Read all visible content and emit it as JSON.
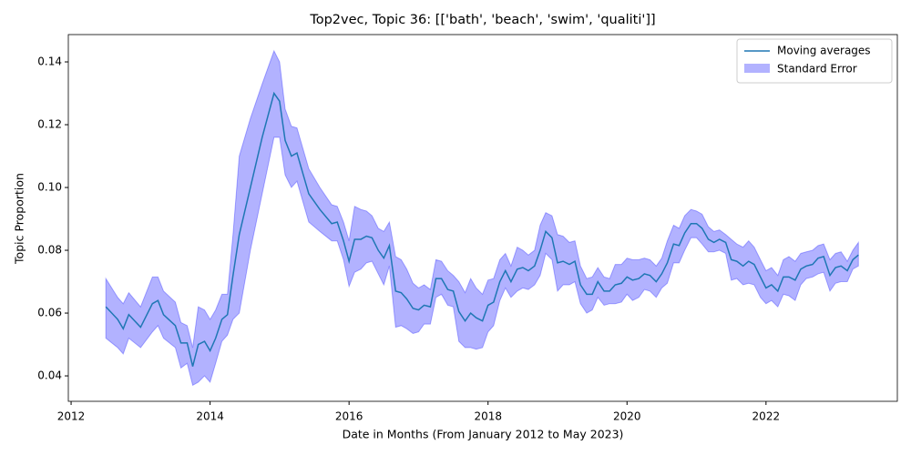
{
  "chart_data": {
    "type": "line",
    "title": "Top2vec, Topic 36: [['bath', 'beach', 'swim', 'qualiti']]",
    "xlabel": "Date in Months (From January 2012 to May 2023)",
    "ylabel": "Topic Proportion",
    "xlim": [
      2011.96,
      2023.89
    ],
    "ylim": [
      0.0319,
      0.1487
    ],
    "xticks": [
      2012,
      2014,
      2016,
      2018,
      2020,
      2022
    ],
    "yticks": [
      0.04,
      0.06,
      0.08,
      {
        "value": 0.1,
        "label": "0.10"
      },
      0.12,
      0.14
    ],
    "legend": "upper right",
    "x": [
      2012.5,
      2012.67,
      2012.75,
      2012.83,
      2013.0,
      2013.17,
      2013.25,
      2013.33,
      2013.5,
      2013.58,
      2013.67,
      2013.75,
      2013.83,
      2013.92,
      2014.0,
      2014.08,
      2014.17,
      2014.25,
      2014.33,
      2014.42,
      2014.58,
      2014.75,
      2014.92,
      2015.0,
      2015.08,
      2015.17,
      2015.25,
      2015.42,
      2015.58,
      2015.75,
      2015.83,
      2015.92,
      2016.0,
      2016.08,
      2016.17,
      2016.25,
      2016.33,
      2016.42,
      2016.5,
      2016.58,
      2016.67,
      2016.75,
      2016.83,
      2016.92,
      2017.0,
      2017.08,
      2017.17,
      2017.25,
      2017.33,
      2017.42,
      2017.5,
      2017.58,
      2017.67,
      2017.75,
      2017.83,
      2017.92,
      2018.0,
      2018.08,
      2018.17,
      2018.25,
      2018.33,
      2018.42,
      2018.5,
      2018.58,
      2018.67,
      2018.75,
      2018.83,
      2018.92,
      2019.0,
      2019.08,
      2019.17,
      2019.25,
      2019.33,
      2019.42,
      2019.5,
      2019.58,
      2019.67,
      2019.75,
      2019.83,
      2019.92,
      2020.0,
      2020.08,
      2020.17,
      2020.25,
      2020.33,
      2020.42,
      2020.5,
      2020.58,
      2020.67,
      2020.75,
      2020.83,
      2020.92,
      2021.0,
      2021.08,
      2021.17,
      2021.25,
      2021.33,
      2021.42,
      2021.5,
      2021.58,
      2021.67,
      2021.75,
      2021.83,
      2021.92,
      2022.0,
      2022.08,
      2022.17,
      2022.25,
      2022.33,
      2022.42,
      2022.5,
      2022.58,
      2022.67,
      2022.75,
      2022.83,
      2022.92,
      2023.0,
      2023.08,
      2023.17,
      2023.25,
      2023.33
    ],
    "series": [
      {
        "name": "Moving averages",
        "color": "#1f77b4",
        "values": [
          0.062,
          0.058,
          0.055,
          0.0595,
          0.0555,
          0.063,
          0.064,
          0.0595,
          0.056,
          0.0505,
          0.0505,
          0.043,
          0.05,
          0.051,
          0.048,
          0.052,
          0.058,
          0.0595,
          0.072,
          0.085,
          0.1,
          0.116,
          0.13,
          0.1275,
          0.115,
          0.11,
          0.111,
          0.098,
          0.093,
          0.0885,
          0.089,
          0.083,
          0.0765,
          0.0835,
          0.0835,
          0.0845,
          0.084,
          0.08,
          0.0775,
          0.0815,
          0.067,
          0.0665,
          0.0645,
          0.0615,
          0.061,
          0.0625,
          0.062,
          0.071,
          0.071,
          0.0675,
          0.067,
          0.0605,
          0.0575,
          0.06,
          0.0585,
          0.0575,
          0.0625,
          0.0635,
          0.07,
          0.0735,
          0.07,
          0.074,
          0.0745,
          0.0735,
          0.075,
          0.08,
          0.086,
          0.084,
          0.076,
          0.0765,
          0.0755,
          0.0765,
          0.069,
          0.066,
          0.066,
          0.07,
          0.067,
          0.067,
          0.069,
          0.0695,
          0.0715,
          0.0705,
          0.071,
          0.0725,
          0.072,
          0.07,
          0.0725,
          0.076,
          0.082,
          0.0815,
          0.0855,
          0.0885,
          0.0885,
          0.087,
          0.0835,
          0.0825,
          0.0835,
          0.0825,
          0.077,
          0.0765,
          0.075,
          0.0765,
          0.0755,
          0.0715,
          0.068,
          0.069,
          0.067,
          0.0715,
          0.0715,
          0.0705,
          0.074,
          0.075,
          0.0755,
          0.0775,
          0.078,
          0.072,
          0.0745,
          0.075,
          0.0735,
          0.077,
          0.0785
        ]
      }
    ],
    "band": {
      "name": "Standard Error",
      "color": "#0000ff",
      "lower": [
        0.052,
        0.049,
        0.047,
        0.052,
        0.049,
        0.054,
        0.056,
        0.052,
        0.049,
        0.0425,
        0.044,
        0.037,
        0.038,
        0.04,
        0.038,
        0.044,
        0.051,
        0.053,
        0.058,
        0.06,
        0.08,
        0.098,
        0.116,
        0.116,
        0.104,
        0.1,
        0.102,
        0.089,
        0.086,
        0.083,
        0.083,
        0.077,
        0.0685,
        0.073,
        0.074,
        0.076,
        0.0765,
        0.0725,
        0.069,
        0.075,
        0.0555,
        0.056,
        0.055,
        0.0535,
        0.054,
        0.0565,
        0.0565,
        0.065,
        0.066,
        0.0625,
        0.062,
        0.051,
        0.049,
        0.049,
        0.0485,
        0.049,
        0.054,
        0.056,
        0.064,
        0.068,
        0.065,
        0.067,
        0.068,
        0.0675,
        0.069,
        0.072,
        0.079,
        0.077,
        0.067,
        0.069,
        0.069,
        0.07,
        0.063,
        0.06,
        0.061,
        0.065,
        0.0625,
        0.063,
        0.063,
        0.0635,
        0.066,
        0.064,
        0.065,
        0.0675,
        0.067,
        0.065,
        0.068,
        0.0695,
        0.076,
        0.076,
        0.08,
        0.084,
        0.084,
        0.082,
        0.0795,
        0.0795,
        0.08,
        0.079,
        0.0705,
        0.071,
        0.069,
        0.0695,
        0.069,
        0.065,
        0.063,
        0.064,
        0.062,
        0.066,
        0.0655,
        0.064,
        0.069,
        0.071,
        0.0715,
        0.0725,
        0.073,
        0.067,
        0.0695,
        0.07,
        0.07,
        0.074,
        0.075
      ],
      "upper": [
        0.071,
        0.065,
        0.063,
        0.0665,
        0.062,
        0.0715,
        0.0715,
        0.067,
        0.0635,
        0.057,
        0.056,
        0.049,
        0.062,
        0.061,
        0.058,
        0.061,
        0.066,
        0.066,
        0.085,
        0.11,
        0.122,
        0.133,
        0.1435,
        0.14,
        0.125,
        0.1195,
        0.119,
        0.106,
        0.1,
        0.0945,
        0.094,
        0.089,
        0.083,
        0.094,
        0.093,
        0.0925,
        0.091,
        0.087,
        0.086,
        0.089,
        0.078,
        0.077,
        0.074,
        0.0695,
        0.068,
        0.069,
        0.0675,
        0.077,
        0.0765,
        0.0735,
        0.072,
        0.07,
        0.0665,
        0.071,
        0.068,
        0.066,
        0.0705,
        0.071,
        0.077,
        0.079,
        0.075,
        0.081,
        0.08,
        0.0785,
        0.08,
        0.088,
        0.092,
        0.091,
        0.085,
        0.0845,
        0.0825,
        0.083,
        0.075,
        0.071,
        0.0715,
        0.0745,
        0.0715,
        0.071,
        0.0755,
        0.0755,
        0.0775,
        0.077,
        0.077,
        0.0775,
        0.077,
        0.075,
        0.0775,
        0.083,
        0.088,
        0.087,
        0.091,
        0.093,
        0.0925,
        0.0915,
        0.0875,
        0.086,
        0.0865,
        0.085,
        0.0835,
        0.082,
        0.081,
        0.083,
        0.081,
        0.077,
        0.0735,
        0.0745,
        0.072,
        0.077,
        0.078,
        0.0765,
        0.079,
        0.0795,
        0.08,
        0.0815,
        0.082,
        0.077,
        0.079,
        0.0795,
        0.0765,
        0.08,
        0.0825
      ]
    }
  }
}
